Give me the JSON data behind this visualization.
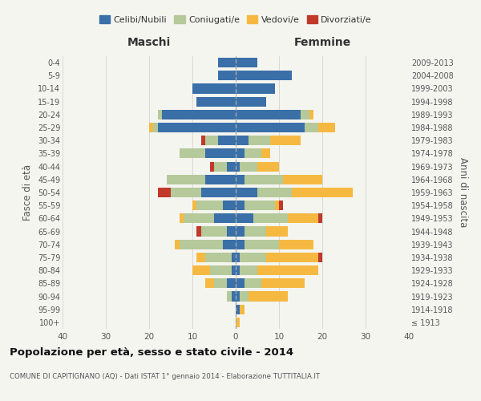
{
  "age_groups": [
    "100+",
    "95-99",
    "90-94",
    "85-89",
    "80-84",
    "75-79",
    "70-74",
    "65-69",
    "60-64",
    "55-59",
    "50-54",
    "45-49",
    "40-44",
    "35-39",
    "30-34",
    "25-29",
    "20-24",
    "15-19",
    "10-14",
    "5-9",
    "0-4"
  ],
  "birth_years": [
    "≤ 1913",
    "1914-1918",
    "1919-1923",
    "1924-1928",
    "1929-1933",
    "1934-1938",
    "1939-1943",
    "1944-1948",
    "1949-1953",
    "1954-1958",
    "1959-1963",
    "1964-1968",
    "1969-1973",
    "1974-1978",
    "1979-1983",
    "1984-1988",
    "1989-1993",
    "1994-1998",
    "1999-2003",
    "2004-2008",
    "2009-2013"
  ],
  "maschi": {
    "celibi": [
      0,
      0,
      1,
      2,
      1,
      1,
      3,
      2,
      5,
      3,
      8,
      7,
      2,
      7,
      4,
      18,
      17,
      9,
      10,
      4,
      4
    ],
    "coniugati": [
      0,
      0,
      1,
      3,
      5,
      6,
      10,
      6,
      7,
      6,
      7,
      9,
      3,
      6,
      3,
      1,
      1,
      0,
      0,
      0,
      0
    ],
    "vedovi": [
      0,
      0,
      0,
      2,
      4,
      2,
      1,
      0,
      1,
      1,
      0,
      0,
      0,
      0,
      0,
      1,
      0,
      0,
      0,
      0,
      0
    ],
    "divorziati": [
      0,
      0,
      0,
      0,
      0,
      0,
      0,
      1,
      0,
      0,
      3,
      0,
      1,
      0,
      1,
      0,
      0,
      0,
      0,
      0,
      0
    ]
  },
  "femmine": {
    "nubili": [
      0,
      1,
      1,
      2,
      1,
      1,
      2,
      2,
      4,
      2,
      5,
      2,
      1,
      2,
      3,
      16,
      15,
      7,
      9,
      13,
      5
    ],
    "coniugate": [
      0,
      0,
      2,
      4,
      4,
      6,
      8,
      5,
      8,
      7,
      8,
      9,
      4,
      4,
      5,
      3,
      2,
      0,
      0,
      0,
      0
    ],
    "vedove": [
      1,
      1,
      9,
      10,
      14,
      12,
      8,
      5,
      7,
      1,
      14,
      9,
      5,
      2,
      7,
      4,
      1,
      0,
      0,
      0,
      0
    ],
    "divorziate": [
      0,
      0,
      0,
      0,
      0,
      1,
      0,
      0,
      1,
      1,
      0,
      0,
      0,
      0,
      0,
      0,
      0,
      0,
      0,
      0,
      0
    ]
  },
  "colors": {
    "celibi": "#3a6fa8",
    "coniugati": "#b5c99a",
    "vedovi": "#f5b942",
    "divorziati": "#c0392b"
  },
  "xlim": 40,
  "title": "Popolazione per età, sesso e stato civile - 2014",
  "subtitle": "COMUNE DI CAPITIGNANO (AQ) - Dati ISTAT 1° gennaio 2014 - Elaborazione TUTTITALIA.IT",
  "ylabel_left": "Fasce di età",
  "ylabel_right": "Anni di nascita",
  "xlabel_maschi": "Maschi",
  "xlabel_femmine": "Femmine",
  "bg_color": "#f5f5f0"
}
